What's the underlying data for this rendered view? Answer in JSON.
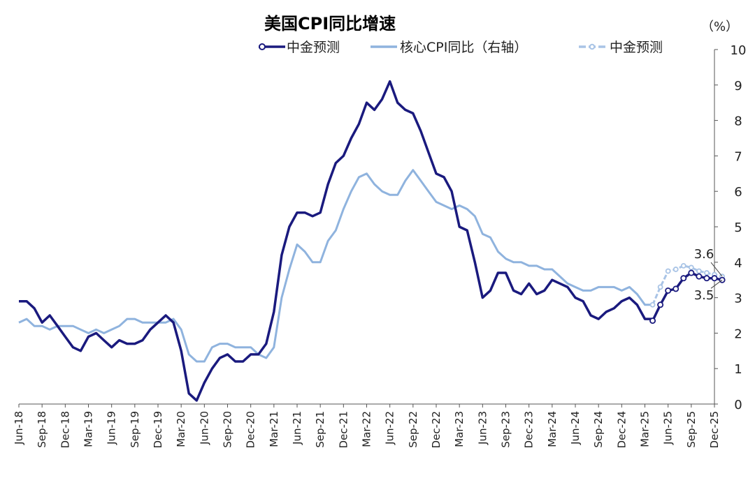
{
  "chart_data": {
    "type": "line",
    "title": "美国CPI同比增速",
    "unit": "（%）",
    "ylim": [
      0,
      10
    ],
    "yticks": [
      "0",
      "1",
      "2",
      "3",
      "4",
      "5",
      "6",
      "7",
      "8",
      "9",
      "10"
    ],
    "xticks": [
      "Jun-18",
      "Sep-18",
      "Dec-18",
      "Mar-19",
      "Jun-19",
      "Sep-19",
      "Dec-19",
      "Mar-20",
      "Jun-20",
      "Sep-20",
      "Dec-20",
      "Mar-21",
      "Jun-21",
      "Sep-21",
      "Dec-21",
      "Mar-22",
      "Jun-22",
      "Sep-22",
      "Dec-22",
      "Mar-23",
      "Jun-23",
      "Sep-23",
      "Dec-23",
      "Mar-24",
      "Jun-24",
      "Sep-24",
      "Dec-24",
      "Mar-25",
      "Jun-25",
      "Sep-25",
      "Dec-25"
    ],
    "x_start": "2018-06",
    "x_end": "2025-12",
    "legend": [
      {
        "label": "中金预测",
        "series": "headline_cpi"
      },
      {
        "label": "核心CPI同比（右轴）",
        "series": "core_cpi"
      },
      {
        "label": "中金预测",
        "series": "core_cpi_forecast"
      }
    ],
    "series": [
      {
        "key": "headline_cpi",
        "color": "#1a1a7e",
        "values": [
          2.9,
          2.9,
          2.7,
          2.3,
          2.5,
          2.2,
          1.9,
          1.6,
          1.5,
          1.9,
          2.0,
          1.8,
          1.6,
          1.8,
          1.7,
          1.7,
          1.8,
          2.1,
          2.3,
          2.5,
          2.3,
          1.5,
          0.3,
          0.1,
          0.6,
          1.0,
          1.3,
          1.4,
          1.2,
          1.2,
          1.4,
          1.4,
          1.7,
          2.6,
          4.2,
          5.0,
          5.4,
          5.4,
          5.3,
          5.4,
          6.2,
          6.8,
          7.0,
          7.5,
          7.9,
          8.5,
          8.3,
          8.6,
          9.1,
          8.5,
          8.3,
          8.2,
          7.7,
          7.1,
          6.5,
          6.4,
          6.0,
          5.0,
          4.9,
          4.0,
          3.0,
          3.2,
          3.7,
          3.7,
          3.2,
          3.1,
          3.4,
          3.1,
          3.2,
          3.5,
          3.4,
          3.3,
          3.0,
          2.9,
          2.5,
          2.4,
          2.6,
          2.7,
          2.9,
          3.0,
          2.8,
          2.4,
          2.4
        ]
      },
      {
        "key": "headline_cpi_forecast",
        "color": "#1a1a7e",
        "values": [
          2.35,
          2.8,
          3.2,
          3.25,
          3.55,
          3.7,
          3.6,
          3.55,
          3.55,
          3.5
        ]
      },
      {
        "key": "core_cpi",
        "color": "#8fb3de",
        "values": [
          2.3,
          2.4,
          2.2,
          2.2,
          2.1,
          2.2,
          2.2,
          2.2,
          2.1,
          2.0,
          2.1,
          2.0,
          2.1,
          2.2,
          2.4,
          2.4,
          2.3,
          2.3,
          2.3,
          2.3,
          2.4,
          2.1,
          1.4,
          1.2,
          1.2,
          1.6,
          1.7,
          1.7,
          1.6,
          1.6,
          1.6,
          1.4,
          1.3,
          1.6,
          3.0,
          3.8,
          4.5,
          4.3,
          4.0,
          4.0,
          4.6,
          4.9,
          5.5,
          6.0,
          6.4,
          6.5,
          6.2,
          6.0,
          5.9,
          5.9,
          6.3,
          6.6,
          6.3,
          6.0,
          5.7,
          5.6,
          5.5,
          5.6,
          5.5,
          5.3,
          4.8,
          4.7,
          4.3,
          4.1,
          4.0,
          4.0,
          3.9,
          3.9,
          3.8,
          3.8,
          3.6,
          3.4,
          3.3,
          3.2,
          3.2,
          3.3,
          3.3,
          3.3,
          3.2,
          3.3,
          3.1,
          2.8,
          2.8
        ]
      },
      {
        "key": "core_cpi_forecast",
        "color": "#a9c4e6",
        "values": [
          2.8,
          3.3,
          3.75,
          3.8,
          3.9,
          3.85,
          3.75,
          3.7,
          3.65,
          3.6
        ]
      }
    ],
    "annotations": [
      {
        "text": "3.6",
        "value": 3.6,
        "series": "core_cpi_forecast"
      },
      {
        "text": "3.5",
        "value": 3.5,
        "series": "headline_cpi_forecast"
      }
    ]
  }
}
